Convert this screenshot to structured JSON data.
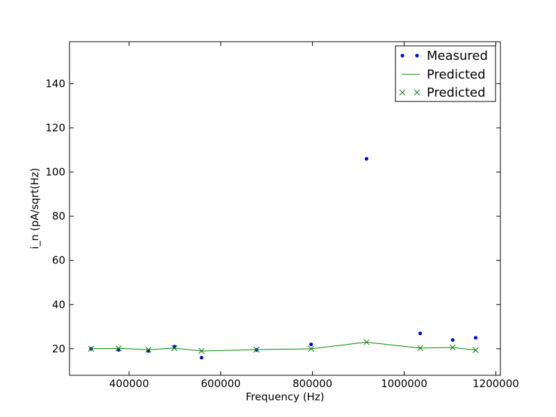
{
  "chart_data": {
    "type": "scatter",
    "title": "",
    "xlabel": "Frequency (Hz)",
    "ylabel": "i_n (pA/sqrt(Hz)",
    "xlim": [
      270000,
      1210000
    ],
    "ylim": [
      8,
      159
    ],
    "xticks": [
      400000,
      600000,
      800000,
      1000000,
      1200000
    ],
    "xtick_labels": [
      "400000",
      "600000",
      "800000",
      "1000000",
      "1200000"
    ],
    "yticks": [
      20,
      40,
      60,
      80,
      100,
      120,
      140
    ],
    "ytick_labels": [
      "20",
      "40",
      "60",
      "80",
      "100",
      "120",
      "140"
    ],
    "grid": false,
    "legend_position": "top-right",
    "series": [
      {
        "name": "Measured",
        "style": "points",
        "color": "#0000ff",
        "x": [
          317000,
          377000,
          442000,
          499000,
          558000,
          678000,
          797000,
          918000,
          1035000,
          1106000,
          1156000
        ],
        "y": [
          20,
          19.5,
          19,
          21,
          16,
          19.5,
          22,
          106,
          27,
          24,
          25
        ]
      },
      {
        "name": "Predicted",
        "style": "line",
        "color": "#008000",
        "x": [
          317000,
          377000,
          442000,
          499000,
          558000,
          678000,
          797000,
          918000,
          1035000,
          1106000,
          1156000
        ],
        "y": [
          20,
          20.2,
          19.6,
          20.3,
          19,
          19.6,
          20,
          23,
          20.3,
          20.6,
          19.4
        ]
      },
      {
        "name": "Predicted",
        "style": "x-markers",
        "color": "#008000",
        "x": [
          317000,
          377000,
          442000,
          499000,
          558000,
          678000,
          797000,
          918000,
          1035000,
          1106000,
          1156000
        ],
        "y": [
          20,
          20.2,
          19.6,
          20.3,
          19,
          19.6,
          20,
          23,
          20.3,
          20.6,
          19.4
        ]
      }
    ]
  }
}
